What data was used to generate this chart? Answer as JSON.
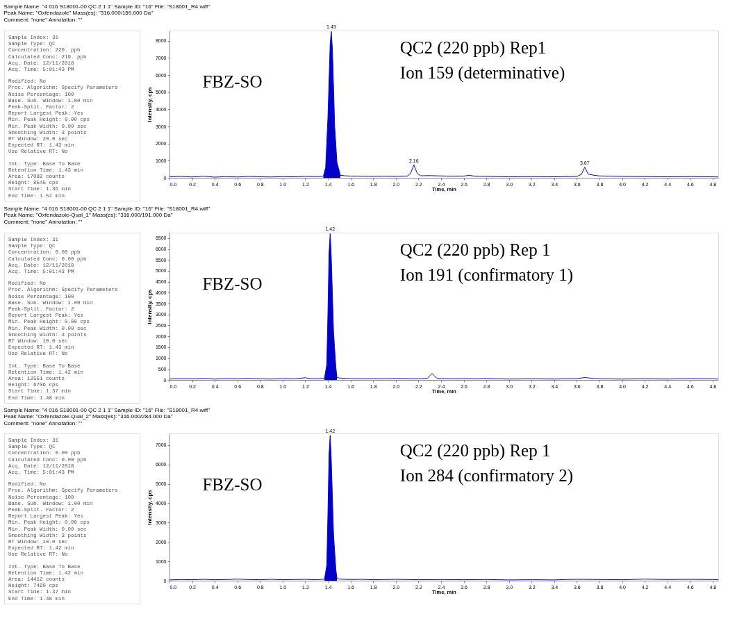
{
  "chart_data": [
    {
      "type": "line",
      "title": "Sample Name: \"4 016 S18001-00 QC 2 1 1\"   Sample ID: \"16\"   File: \"S18001_R4.wiff\"",
      "subtitle": [
        "Peak Name: \"Oxfendazole\"   Mass(es): \"316.000/159.000 Da\"",
        "Comment: \"none\"   Annotation: \"\""
      ],
      "xlabel": "Time, min",
      "ylabel": "Intensity, cps",
      "xlim": [
        0,
        4.85
      ],
      "ylim": [
        0,
        8600
      ],
      "xticks": [
        {
          "value": 0,
          "label": "0.0"
        },
        0.2,
        0.4,
        0.6,
        0.8,
        {
          "value": 1,
          "label": "1.0"
        },
        1.2,
        1.4,
        1.6,
        1.8,
        {
          "value": 2,
          "label": "2.0"
        },
        2.2,
        2.4,
        2.6,
        2.8,
        {
          "value": 3,
          "label": "3.0"
        },
        3.2,
        3.4,
        3.6,
        3.8,
        {
          "value": 4,
          "label": "4.0"
        },
        4.2,
        4.4,
        4.6,
        4.8
      ],
      "yticks": [
        0,
        1000,
        2000,
        3000,
        4000,
        5000,
        6000,
        7000,
        8000
      ],
      "grid": false,
      "series": [
        {
          "type": "area",
          "color": "#0000c8",
          "x": [
            1.36,
            1.38,
            1.4,
            1.42,
            1.43,
            1.44,
            1.46,
            1.48,
            1.51
          ],
          "values": [
            90,
            600,
            3500,
            7800,
            8545,
            7500,
            3000,
            900,
            150
          ]
        },
        {
          "type": "line",
          "color": "#0000ff",
          "x": [
            0,
            0.1,
            0.2,
            0.3,
            0.4,
            0.5,
            0.6,
            0.7,
            0.8,
            0.9,
            1.0,
            1.1,
            1.2,
            1.3,
            1.36,
            1.38,
            1.4,
            1.42,
            1.43,
            1.44,
            1.46,
            1.48,
            1.51,
            1.55,
            1.6,
            1.7,
            1.8,
            1.9,
            2.0,
            2.1,
            2.13,
            2.16,
            2.19,
            2.22,
            2.3,
            2.4,
            2.5,
            2.6,
            2.65,
            2.7,
            2.8,
            3.0,
            3.2,
            3.4,
            3.6,
            3.64,
            3.67,
            3.7,
            3.75,
            3.8,
            4.0,
            4.2,
            4.4,
            4.6,
            4.8,
            4.85
          ],
          "values": [
            60,
            80,
            50,
            90,
            40,
            70,
            50,
            80,
            60,
            50,
            70,
            60,
            80,
            70,
            90,
            600,
            3500,
            7800,
            8545,
            7500,
            3000,
            900,
            150,
            120,
            100,
            90,
            80,
            90,
            80,
            100,
            250,
            750,
            250,
            120,
            130,
            110,
            90,
            100,
            150,
            90,
            80,
            60,
            70,
            60,
            80,
            200,
            620,
            220,
            150,
            110,
            80,
            70,
            60,
            70,
            60,
            50
          ]
        }
      ],
      "annotations": [
        "Sample Index: 31",
        "Sample Type: QC",
        "Concentration: 220. ppb",
        "Calculated Conc: 219. ppb",
        "Acq. Date: 12/11/2018",
        "Acq. Time: 5:01:43 PM",
        "Modified: No",
        "Proc. Algorithm: Specify Parameters",
        "Noise Percentage: 100",
        "Base. Sub. Window: 1.00 min",
        "Peak-Split. Factor: 2",
        "Report Largest Peak: Yes",
        "Min. Peak Height: 0.00 cps",
        "Min. Peak Width: 0.00 sec",
        "Smoothing Width: 3 points",
        "RT Window: 20.0 sec",
        "Expected RT: 1.43 min",
        "Use Relative RT: No",
        "Int. Type: Base To Base",
        "Retention Time: 1.43 min",
        "Area: 17082 counts",
        "Height: 8545 cps",
        "Start Time: 1.36 min",
        "End Time: 1.51 min",
        "FBZ-SO",
        "QC2 (220 ppb) Rep1",
        " Ion 159 (determinative)",
        {
          "text": "1.43",
          "x": 1.43,
          "y": 8545
        },
        {
          "text": "2.16",
          "x": 2.16,
          "y": 750
        },
        {
          "text": "3.67",
          "x": 3.67,
          "y": 620
        }
      ]
    },
    {
      "type": "line",
      "title": "Sample Name: \"4 016 S18001-00 QC 2 1 1\"   Sample ID: \"16\"   File: \"S18001_R4.wiff\"",
      "subtitle": [
        "Peak Name: \"Oxfendazole-Qual_1\"   Mass(es): \"316.000/191.000 Da\"",
        "Comment: \"none\"   Annotation: \"\""
      ],
      "xlabel": "Time, min",
      "ylabel": "Intensity, cps",
      "xlim": [
        0,
        4.85
      ],
      "ylim": [
        0,
        6750
      ],
      "xticks": [
        {
          "value": 0,
          "label": "0.0"
        },
        0.2,
        0.4,
        0.6,
        0.8,
        {
          "value": 1,
          "label": "1.0"
        },
        1.2,
        1.4,
        1.6,
        1.8,
        {
          "value": 2,
          "label": "2.0"
        },
        2.2,
        2.4,
        2.6,
        2.8,
        {
          "value": 3,
          "label": "3.0"
        },
        3.2,
        3.4,
        3.6,
        3.8,
        {
          "value": 4,
          "label": "4.0"
        },
        4.2,
        4.4,
        4.6,
        4.8
      ],
      "yticks": [
        0,
        500,
        1000,
        1500,
        2000,
        2500,
        3000,
        3500,
        4000,
        4500,
        5000,
        5500,
        6000,
        6500
      ],
      "grid": false,
      "series": [
        {
          "type": "area",
          "color": "#0000c8",
          "x": [
            1.37,
            1.39,
            1.4,
            1.41,
            1.42,
            1.43,
            1.45,
            1.47,
            1.48
          ],
          "values": [
            80,
            700,
            3000,
            5800,
            6706,
            5600,
            2200,
            600,
            120
          ]
        },
        {
          "type": "line",
          "color": "#0000ff",
          "x": [
            0,
            0.1,
            0.2,
            0.3,
            0.4,
            0.5,
            0.6,
            0.7,
            0.8,
            0.9,
            1.0,
            1.1,
            1.2,
            1.25,
            1.3,
            1.37,
            1.39,
            1.4,
            1.41,
            1.42,
            1.43,
            1.45,
            1.47,
            1.48,
            1.5,
            1.6,
            1.7,
            1.8,
            1.9,
            2.0,
            2.1,
            2.2,
            2.28,
            2.32,
            2.36,
            2.4,
            2.5,
            2.6,
            2.7,
            2.8,
            2.9,
            3.0,
            3.2,
            3.4,
            3.6,
            3.67,
            3.75,
            3.8,
            4.0,
            4.2,
            4.4,
            4.6,
            4.8,
            4.85
          ],
          "values": [
            40,
            60,
            50,
            70,
            40,
            60,
            50,
            70,
            50,
            40,
            60,
            50,
            100,
            60,
            50,
            80,
            700,
            3000,
            5800,
            6706,
            5600,
            2200,
            600,
            120,
            90,
            60,
            50,
            60,
            50,
            70,
            60,
            50,
            80,
            300,
            90,
            60,
            50,
            60,
            50,
            70,
            50,
            40,
            50,
            40,
            60,
            110,
            70,
            50,
            40,
            50,
            40,
            60,
            50,
            40
          ]
        }
      ],
      "annotations": [
        "Sample Index: 31",
        "Sample Type: QC",
        "Concentration: 0.00 ppb",
        "Calculated Conc: 0.00 ppb",
        "Acq. Date: 12/11/2018",
        "Acq. Time: 5:01:43 PM",
        "Modified: No",
        "Proc. Algorithm: Specify Parameters",
        "Noise Percentage: 100",
        "Base. Sub. Window: 1.00 min",
        "Peak-Split. Factor: 2",
        "Report Largest Peak: Yes",
        "Min. Peak Height: 0.00 cps",
        "Min. Peak Width: 0.00 sec",
        "Smoothing Width: 3 points",
        "RT Window: 10.0 sec",
        "Expected RT: 1.43 min",
        "Use Relative RT: No",
        "Int. Type: Base To Base",
        "Retention Time: 1.42 min",
        "Area: 12551 counts",
        "Height: 6706 cps",
        "Start Time: 1.37 min",
        "End Time: 1.48 min",
        "FBZ-SO",
        "QC2 (220 ppb) Rep 1",
        " Ion 191 (confirmatory 1)",
        {
          "text": "1.42",
          "x": 1.42,
          "y": 6706
        }
      ]
    },
    {
      "type": "line",
      "title": "Sample Name: \"4 016 S18001-00 QC 2 1 1\"   Sample ID: \"16\"   File: \"S18001_R4.wiff\"",
      "subtitle": [
        "Peak Name: \"Oxfendazole-Qual_2\"   Mass(es): \"316.000/284.000 Da\"",
        "Comment: \"none\"   Annotation: \"\""
      ],
      "xlabel": "Time, min",
      "ylabel": "Intensity, cps",
      "xlim": [
        0,
        4.85
      ],
      "ylim": [
        0,
        7600
      ],
      "xticks": [
        {
          "value": 0,
          "label": "0.0"
        },
        0.2,
        0.4,
        0.6,
        0.8,
        {
          "value": 1,
          "label": "1.0"
        },
        1.2,
        1.4,
        1.6,
        1.8,
        {
          "value": 2,
          "label": "2.0"
        },
        2.2,
        2.4,
        2.6,
        2.8,
        {
          "value": 3,
          "label": "3.0"
        },
        3.2,
        3.4,
        3.6,
        3.8,
        {
          "value": 4,
          "label": "4.0"
        },
        4.2,
        4.4,
        4.6,
        4.8
      ],
      "yticks": [
        0,
        1000,
        2000,
        3000,
        4000,
        5000,
        6000,
        7000
      ],
      "grid": false,
      "series": [
        {
          "type": "area",
          "color": "#0000c8",
          "x": [
            1.37,
            1.39,
            1.4,
            1.41,
            1.42,
            1.43,
            1.45,
            1.47,
            1.48
          ],
          "values": [
            80,
            800,
            3400,
            6500,
            7499,
            6200,
            2400,
            600,
            120
          ]
        },
        {
          "type": "line",
          "color": "#0000ff",
          "x": [
            0,
            0.1,
            0.2,
            0.3,
            0.4,
            0.5,
            0.6,
            0.7,
            0.8,
            0.9,
            1.0,
            1.1,
            1.2,
            1.3,
            1.37,
            1.39,
            1.4,
            1.41,
            1.42,
            1.43,
            1.45,
            1.47,
            1.48,
            1.5,
            1.6,
            1.7,
            1.8,
            1.9,
            2.0,
            2.2,
            2.4,
            2.6,
            2.8,
            3.0,
            3.2,
            3.4,
            3.5,
            3.6,
            3.8,
            4.0,
            4.2,
            4.4,
            4.6,
            4.8,
            4.85
          ],
          "values": [
            40,
            60,
            50,
            70,
            50,
            60,
            80,
            60,
            50,
            70,
            50,
            60,
            70,
            50,
            80,
            800,
            3400,
            6500,
            7499,
            6200,
            2400,
            600,
            120,
            80,
            60,
            70,
            50,
            60,
            70,
            50,
            60,
            50,
            60,
            40,
            50,
            40,
            60,
            70,
            60,
            50,
            80,
            60,
            70,
            60,
            50
          ]
        }
      ],
      "annotations": [
        "Sample Index: 31",
        "Sample Type: QC",
        "Concentration: 0.00 ppb",
        "Calculated Conc: 0.00 ppb",
        "Acq. Date: 12/11/2018",
        "Acq. Time: 5:01:43 PM",
        "Modified: No",
        "Proc. Algorithm: Specify Parameters",
        "Noise Percentage: 100",
        "Base. Sub. Window: 1.00 min",
        "Peak-Split. Factor: 2",
        "Report Largest Peak: Yes",
        "Min. Peak Height: 0.00 cps",
        "Min. Peak Width: 0.00 sec",
        "Smoothing Width: 3 points",
        "RT Window: 10.0 sec",
        "Expected RT: 1.42 min",
        "Use Relative RT: No",
        "Int. Type: Base To Base",
        "Retention Time: 1.42 min",
        "Area: 14412 counts",
        "Height: 7499 cps",
        "Start Time: 1.37 min",
        "End Time: 1.48 min",
        "FBZ-SO",
        "QC2 (220 ppb) Rep 1",
        " Ion 284 (confirmatory 2)",
        {
          "text": "1.42",
          "x": 1.42,
          "y": 7499
        }
      ]
    }
  ]
}
